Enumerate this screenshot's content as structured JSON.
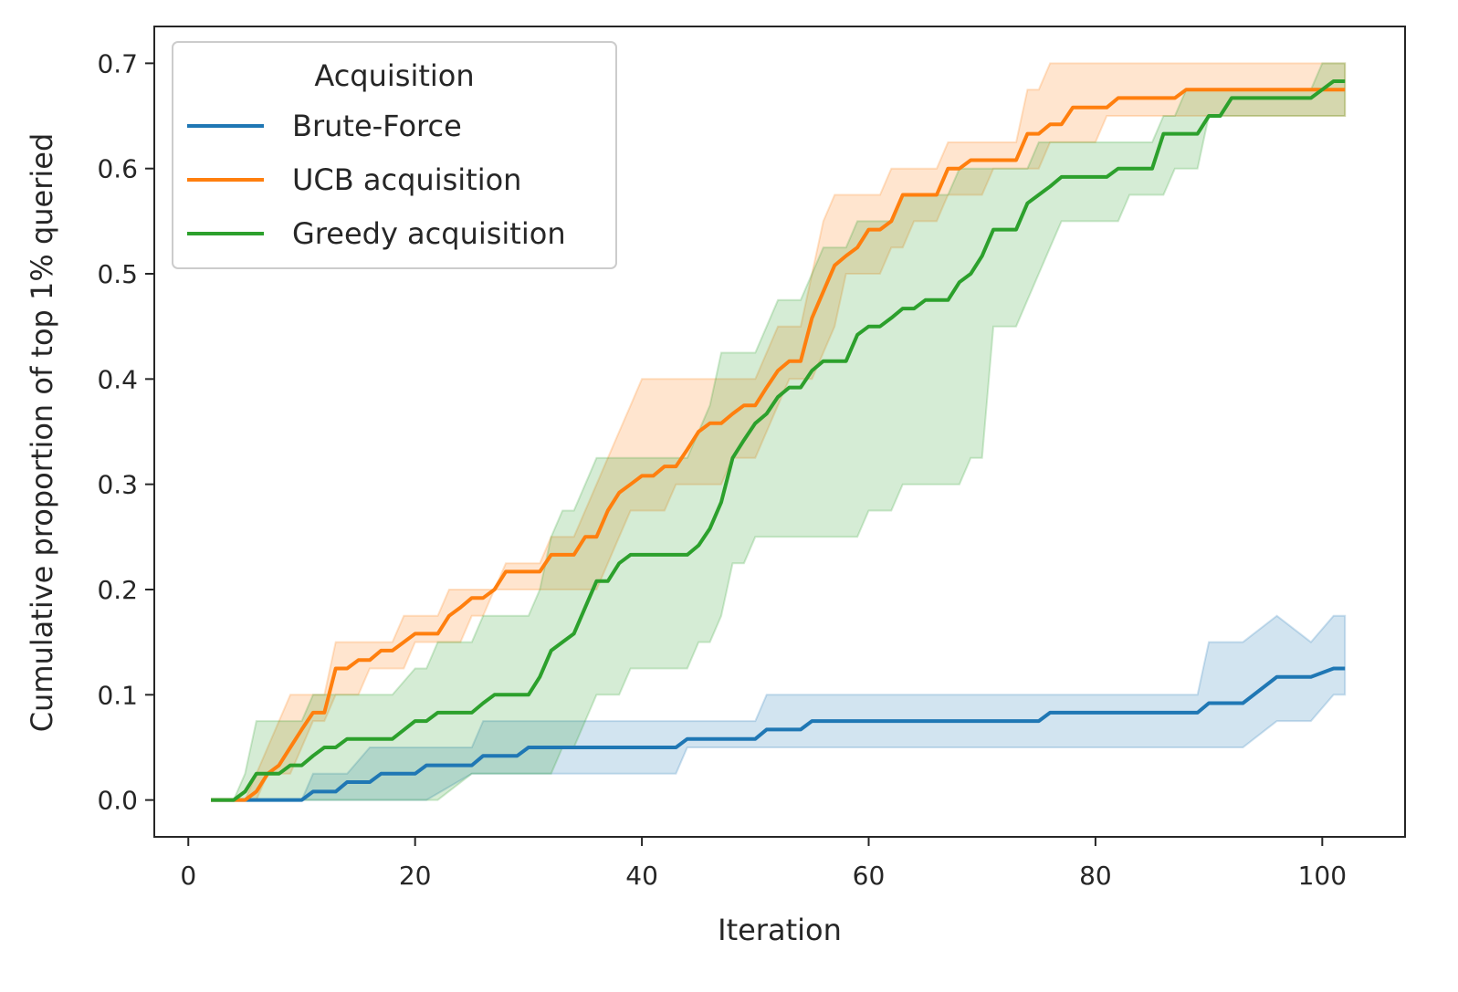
{
  "chart_data": {
    "type": "line",
    "title": "",
    "xlabel": "Iteration",
    "ylabel": "Cumulative proportion of top 1% queried",
    "xlim": [
      -3,
      107.3
    ],
    "ylim": [
      -0.035,
      0.735
    ],
    "xticks": [
      0,
      20,
      40,
      60,
      80,
      100
    ],
    "xtick_labels": [
      "0",
      "20",
      "40",
      "60",
      "80",
      "100"
    ],
    "yticks": [
      0.0,
      0.1,
      0.2,
      0.3,
      0.4,
      0.5,
      0.6,
      0.7
    ],
    "ytick_labels": [
      "0.0",
      "0.1",
      "0.2",
      "0.3",
      "0.4",
      "0.5",
      "0.6",
      "0.7"
    ],
    "grid": false,
    "legend": {
      "title": "Acquisition",
      "position": "top-left"
    },
    "series": [
      {
        "name": "Brute-Force",
        "color": "#1f77b4",
        "x": [
          2,
          5,
          10,
          11,
          13,
          14,
          16,
          17,
          20,
          21,
          25,
          26,
          29,
          30,
          43,
          44,
          50,
          51,
          54,
          55,
          75,
          76,
          89,
          90,
          93,
          96,
          99,
          101,
          102
        ],
        "y": [
          0,
          0,
          0,
          0.008,
          0.008,
          0.017,
          0.017,
          0.025,
          0.025,
          0.033,
          0.033,
          0.042,
          0.042,
          0.05,
          0.05,
          0.058,
          0.058,
          0.067,
          0.067,
          0.075,
          0.075,
          0.083,
          0.083,
          0.092,
          0.092,
          0.117,
          0.117,
          0.125,
          0.125
        ],
        "lower": [
          0,
          0,
          0,
          0,
          0,
          0,
          0,
          0,
          0,
          0,
          0.025,
          0.025,
          0.025,
          0.025,
          0.025,
          0.05,
          0.05,
          0.05,
          0.05,
          0.05,
          0.05,
          0.05,
          0.05,
          0.05,
          0.05,
          0.075,
          0.075,
          0.1,
          0.1
        ],
        "upper": [
          0,
          0,
          0,
          0.025,
          0.025,
          0.025,
          0.05,
          0.05,
          0.05,
          0.05,
          0.05,
          0.075,
          0.075,
          0.075,
          0.075,
          0.075,
          0.075,
          0.1,
          0.1,
          0.1,
          0.1,
          0.1,
          0.1,
          0.15,
          0.15,
          0.175,
          0.15,
          0.175,
          0.175
        ]
      },
      {
        "name": "UCB acquisition",
        "color": "#ff7f0e",
        "x": [
          2,
          4,
          5,
          6,
          7,
          8,
          9,
          10,
          11,
          12,
          13,
          14,
          15,
          16,
          17,
          18,
          19,
          20,
          21,
          22,
          23,
          24,
          25,
          26,
          27,
          28,
          29,
          30,
          31,
          32,
          33,
          34,
          35,
          36,
          37,
          38,
          39,
          40,
          41,
          42,
          43,
          44,
          45,
          46,
          47,
          48,
          49,
          50,
          51,
          52,
          53,
          54,
          55,
          56,
          57,
          58,
          59,
          60,
          61,
          62,
          63,
          64,
          65,
          66,
          67,
          68,
          69,
          70,
          71,
          72,
          73,
          74,
          75,
          76,
          77,
          78,
          79,
          80,
          81,
          82,
          83,
          84,
          85,
          86,
          87,
          88,
          89,
          90,
          91,
          92,
          93,
          94,
          95,
          96,
          97,
          98,
          99,
          100,
          101,
          102
        ],
        "y": [
          0,
          0,
          0,
          0.008,
          0.025,
          0.033,
          0.05,
          0.067,
          0.083,
          0.083,
          0.125,
          0.125,
          0.133,
          0.133,
          0.142,
          0.142,
          0.15,
          0.158,
          0.158,
          0.158,
          0.175,
          0.183,
          0.192,
          0.192,
          0.2,
          0.217,
          0.217,
          0.217,
          0.217,
          0.233,
          0.233,
          0.233,
          0.25,
          0.25,
          0.275,
          0.292,
          0.3,
          0.308,
          0.308,
          0.317,
          0.317,
          0.333,
          0.35,
          0.358,
          0.358,
          0.367,
          0.375,
          0.375,
          0.392,
          0.408,
          0.417,
          0.417,
          0.458,
          0.483,
          0.508,
          0.517,
          0.525,
          0.542,
          0.542,
          0.55,
          0.575,
          0.575,
          0.575,
          0.575,
          0.6,
          0.6,
          0.608,
          0.608,
          0.608,
          0.608,
          0.608,
          0.633,
          0.633,
          0.642,
          0.642,
          0.658,
          0.658,
          0.658,
          0.658,
          0.667,
          0.667,
          0.667,
          0.667,
          0.667,
          0.667,
          0.675,
          0.675,
          0.675,
          0.675,
          0.675,
          0.675,
          0.675,
          0.675,
          0.675,
          0.675,
          0.675,
          0.675,
          0.675,
          0.675,
          0.675
        ],
        "lower": [
          0,
          0,
          0,
          0,
          0.025,
          0.025,
          0.025,
          0.05,
          0.075,
          0.075,
          0.1,
          0.1,
          0.1,
          0.125,
          0.125,
          0.125,
          0.125,
          0.15,
          0.15,
          0.15,
          0.15,
          0.15,
          0.175,
          0.175,
          0.2,
          0.2,
          0.2,
          0.2,
          0.2,
          0.2,
          0.2,
          0.2,
          0.2,
          0.2,
          0.225,
          0.25,
          0.275,
          0.275,
          0.275,
          0.275,
          0.3,
          0.3,
          0.3,
          0.3,
          0.3,
          0.325,
          0.325,
          0.325,
          0.35,
          0.375,
          0.4,
          0.4,
          0.4,
          0.425,
          0.45,
          0.5,
          0.5,
          0.5,
          0.5,
          0.525,
          0.525,
          0.55,
          0.55,
          0.55,
          0.575,
          0.575,
          0.575,
          0.575,
          0.6,
          0.6,
          0.6,
          0.6,
          0.6,
          0.625,
          0.625,
          0.625,
          0.625,
          0.625,
          0.65,
          0.65,
          0.65,
          0.65,
          0.65,
          0.65,
          0.65,
          0.65,
          0.65,
          0.65,
          0.65,
          0.65,
          0.65,
          0.65,
          0.65,
          0.65,
          0.65,
          0.65,
          0.65,
          0.65,
          0.65,
          0.65
        ],
        "upper": [
          0,
          0,
          0,
          0.025,
          0.05,
          0.075,
          0.1,
          0.1,
          0.1,
          0.1,
          0.15,
          0.15,
          0.15,
          0.15,
          0.15,
          0.15,
          0.175,
          0.175,
          0.175,
          0.175,
          0.2,
          0.2,
          0.2,
          0.2,
          0.2,
          0.225,
          0.225,
          0.225,
          0.225,
          0.25,
          0.25,
          0.25,
          0.275,
          0.3,
          0.325,
          0.35,
          0.375,
          0.4,
          0.4,
          0.4,
          0.4,
          0.4,
          0.4,
          0.4,
          0.4,
          0.4,
          0.4,
          0.4,
          0.425,
          0.45,
          0.45,
          0.45,
          0.5,
          0.55,
          0.575,
          0.575,
          0.575,
          0.575,
          0.575,
          0.6,
          0.6,
          0.6,
          0.6,
          0.6,
          0.625,
          0.625,
          0.625,
          0.625,
          0.625,
          0.625,
          0.625,
          0.675,
          0.675,
          0.7,
          0.7,
          0.7,
          0.7,
          0.7,
          0.7,
          0.7,
          0.7,
          0.7,
          0.7,
          0.7,
          0.7,
          0.7,
          0.7,
          0.7,
          0.7,
          0.7,
          0.7,
          0.7,
          0.7,
          0.7,
          0.7,
          0.7,
          0.7,
          0.7,
          0.7,
          0.7
        ]
      },
      {
        "name": "Greedy acquisition",
        "color": "#2ca02c",
        "x": [
          2,
          4,
          5,
          6,
          8,
          9,
          10,
          11,
          12,
          13,
          14,
          16,
          18,
          20,
          21,
          22,
          25,
          26,
          27,
          30,
          31,
          32,
          33,
          34,
          35,
          36,
          37,
          38,
          39,
          40,
          43,
          44,
          45,
          46,
          47,
          48,
          49,
          50,
          51,
          52,
          53,
          54,
          55,
          56,
          58,
          59,
          60,
          61,
          62,
          63,
          64,
          65,
          66,
          67,
          68,
          69,
          70,
          71,
          72,
          73,
          74,
          75,
          76,
          77,
          78,
          79,
          80,
          81,
          82,
          83,
          84,
          85,
          86,
          87,
          88,
          89,
          90,
          91,
          92,
          93,
          94,
          95,
          96,
          97,
          98,
          99,
          100,
          101,
          102
        ],
        "y": [
          0,
          0,
          0.008,
          0.025,
          0.025,
          0.033,
          0.033,
          0.042,
          0.05,
          0.05,
          0.058,
          0.058,
          0.058,
          0.075,
          0.075,
          0.083,
          0.083,
          0.092,
          0.1,
          0.1,
          0.117,
          0.142,
          0.15,
          0.158,
          0.183,
          0.208,
          0.208,
          0.225,
          0.233,
          0.233,
          0.233,
          0.233,
          0.242,
          0.258,
          0.283,
          0.325,
          0.342,
          0.358,
          0.367,
          0.383,
          0.392,
          0.392,
          0.408,
          0.417,
          0.417,
          0.442,
          0.45,
          0.45,
          0.458,
          0.467,
          0.467,
          0.475,
          0.475,
          0.475,
          0.492,
          0.5,
          0.517,
          0.542,
          0.542,
          0.542,
          0.567,
          0.575,
          0.583,
          0.592,
          0.592,
          0.592,
          0.592,
          0.592,
          0.6,
          0.6,
          0.6,
          0.6,
          0.633,
          0.633,
          0.633,
          0.633,
          0.65,
          0.65,
          0.667,
          0.667,
          0.667,
          0.667,
          0.667,
          0.667,
          0.667,
          0.667,
          0.675,
          0.683,
          0.683
        ],
        "lower": [
          0,
          0,
          0,
          0,
          0,
          0,
          0,
          0,
          0,
          0,
          0,
          0,
          0,
          0,
          0,
          0,
          0.025,
          0.025,
          0.025,
          0.025,
          0.025,
          0.025,
          0.05,
          0.05,
          0.075,
          0.1,
          0.1,
          0.1,
          0.125,
          0.125,
          0.125,
          0.125,
          0.15,
          0.15,
          0.175,
          0.225,
          0.225,
          0.25,
          0.25,
          0.25,
          0.25,
          0.25,
          0.25,
          0.25,
          0.25,
          0.25,
          0.275,
          0.275,
          0.275,
          0.3,
          0.3,
          0.3,
          0.3,
          0.3,
          0.3,
          0.325,
          0.325,
          0.45,
          0.45,
          0.45,
          0.475,
          0.5,
          0.525,
          0.55,
          0.55,
          0.55,
          0.55,
          0.55,
          0.55,
          0.575,
          0.575,
          0.575,
          0.575,
          0.6,
          0.6,
          0.6,
          0.65,
          0.65,
          0.65,
          0.65,
          0.65,
          0.65,
          0.65,
          0.65,
          0.65,
          0.65,
          0.65,
          0.65,
          0.65
        ],
        "upper": [
          0,
          0,
          0.025,
          0.075,
          0.075,
          0.075,
          0.075,
          0.1,
          0.1,
          0.1,
          0.1,
          0.1,
          0.1,
          0.125,
          0.125,
          0.15,
          0.15,
          0.175,
          0.175,
          0.175,
          0.2,
          0.25,
          0.275,
          0.275,
          0.3,
          0.325,
          0.325,
          0.325,
          0.325,
          0.325,
          0.325,
          0.325,
          0.35,
          0.375,
          0.425,
          0.425,
          0.425,
          0.425,
          0.45,
          0.475,
          0.475,
          0.475,
          0.5,
          0.525,
          0.525,
          0.55,
          0.55,
          0.55,
          0.55,
          0.575,
          0.575,
          0.575,
          0.575,
          0.575,
          0.6,
          0.6,
          0.6,
          0.6,
          0.6,
          0.6,
          0.6,
          0.625,
          0.625,
          0.625,
          0.625,
          0.625,
          0.625,
          0.625,
          0.625,
          0.625,
          0.625,
          0.625,
          0.65,
          0.65,
          0.675,
          0.675,
          0.675,
          0.675,
          0.675,
          0.675,
          0.675,
          0.675,
          0.675,
          0.675,
          0.675,
          0.675,
          0.7,
          0.7,
          0.7
        ]
      }
    ]
  }
}
